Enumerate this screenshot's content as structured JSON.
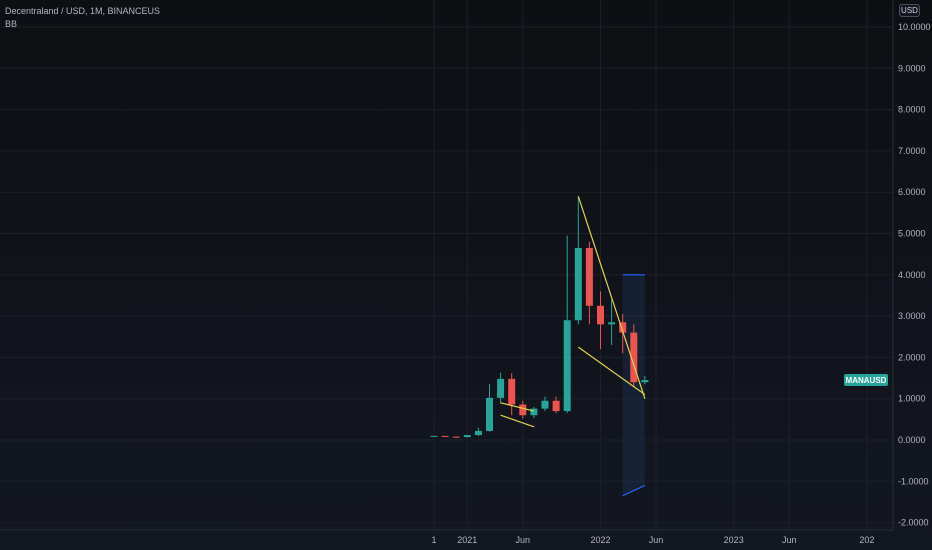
{
  "header": {
    "title": "Decentraland / USD, 1M, BINANCEUS",
    "indicator": "BB",
    "currency": "USD"
  },
  "colors": {
    "up": "#26a69a",
    "down": "#ef5350",
    "grid": "#1c2029",
    "trendline": "#e3d44a",
    "band_fill": "#1e3a5f",
    "band_line": "#2962ff",
    "badge": "#26a69a"
  },
  "chart_data": {
    "type": "candlestick",
    "symbol_badge": "MANAUSD",
    "last_price": 1.45,
    "y_axis": {
      "range": [
        -2.2,
        10.4
      ],
      "ticks": [
        10,
        9,
        8,
        7,
        6,
        5,
        4,
        3,
        2,
        1,
        0,
        -1,
        -2
      ],
      "tick_labels": [
        "10.0000",
        "9.0000",
        "8.0000",
        "7.0000",
        "6.0000",
        "5.0000",
        "4.0000",
        "3.0000",
        "2.0000",
        "1.0000",
        "0.0000",
        "-1.0000",
        "-2.0000"
      ]
    },
    "x_axis": {
      "start": "2020-06",
      "end": "2024-01",
      "ticks": [
        {
          "date": "2020-10",
          "label": "1"
        },
        {
          "date": "2021-01",
          "label": "2021"
        },
        {
          "date": "2021-06",
          "label": "Jun"
        },
        {
          "date": "2022-01",
          "label": "2022"
        },
        {
          "date": "2022-06",
          "label": "Jun"
        },
        {
          "date": "2023-01",
          "label": "2023"
        },
        {
          "date": "2023-06",
          "label": "Jun"
        },
        {
          "date": "2024-01",
          "label": "202"
        }
      ]
    },
    "candles": [
      {
        "date": "2020-10",
        "o": 0.09,
        "h": 0.1,
        "l": 0.08,
        "c": 0.1
      },
      {
        "date": "2020-11",
        "o": 0.1,
        "h": 0.1,
        "l": 0.07,
        "c": 0.08
      },
      {
        "date": "2020-12",
        "o": 0.08,
        "h": 0.09,
        "l": 0.07,
        "c": 0.07
      },
      {
        "date": "2021-01",
        "o": 0.07,
        "h": 0.12,
        "l": 0.06,
        "c": 0.12
      },
      {
        "date": "2021-02",
        "o": 0.12,
        "h": 0.3,
        "l": 0.1,
        "c": 0.22
      },
      {
        "date": "2021-03",
        "o": 0.22,
        "h": 1.35,
        "l": 0.2,
        "c": 1.02
      },
      {
        "date": "2021-04",
        "o": 1.02,
        "h": 1.63,
        "l": 0.88,
        "c": 1.48
      },
      {
        "date": "2021-05",
        "o": 1.48,
        "h": 1.62,
        "l": 0.6,
        "c": 0.86
      },
      {
        "date": "2021-06",
        "o": 0.86,
        "h": 0.95,
        "l": 0.52,
        "c": 0.6
      },
      {
        "date": "2021-07",
        "o": 0.6,
        "h": 0.8,
        "l": 0.53,
        "c": 0.76
      },
      {
        "date": "2021-08",
        "o": 0.76,
        "h": 1.05,
        "l": 0.7,
        "c": 0.95
      },
      {
        "date": "2021-09",
        "o": 0.95,
        "h": 1.05,
        "l": 0.65,
        "c": 0.7
      },
      {
        "date": "2021-10",
        "o": 0.7,
        "h": 4.95,
        "l": 0.65,
        "c": 2.9
      },
      {
        "date": "2021-11",
        "o": 2.9,
        "h": 5.9,
        "l": 2.8,
        "c": 4.65
      },
      {
        "date": "2021-12",
        "o": 4.65,
        "h": 4.8,
        "l": 2.8,
        "c": 3.25
      },
      {
        "date": "2022-01",
        "o": 3.25,
        "h": 3.6,
        "l": 2.2,
        "c": 2.8
      },
      {
        "date": "2022-02",
        "o": 2.8,
        "h": 3.4,
        "l": 2.3,
        "c": 2.85
      },
      {
        "date": "2022-03",
        "o": 2.85,
        "h": 3.05,
        "l": 2.1,
        "c": 2.6
      },
      {
        "date": "2022-04",
        "o": 2.6,
        "h": 2.8,
        "l": 1.3,
        "c": 1.4
      },
      {
        "date": "2022-05",
        "o": 1.4,
        "h": 1.55,
        "l": 1.35,
        "c": 1.45
      }
    ],
    "trendlines": [
      {
        "from": {
          "date": "2021-04",
          "y": 0.9
        },
        "to": {
          "date": "2021-07",
          "y": 0.7
        }
      },
      {
        "from": {
          "date": "2021-04",
          "y": 0.6
        },
        "to": {
          "date": "2021-07",
          "y": 0.32
        }
      },
      {
        "from": {
          "date": "2021-11",
          "y": 5.9
        },
        "to": {
          "date": "2022-05",
          "y": 1.0
        }
      },
      {
        "from": {
          "date": "2021-11",
          "y": 2.25
        },
        "to": {
          "date": "2022-05",
          "y": 1.1
        }
      }
    ],
    "band": {
      "from": "2022-03",
      "to": "2022-05",
      "upper": [
        4.0,
        4.0
      ],
      "lower": [
        -1.35,
        -1.1
      ]
    }
  }
}
